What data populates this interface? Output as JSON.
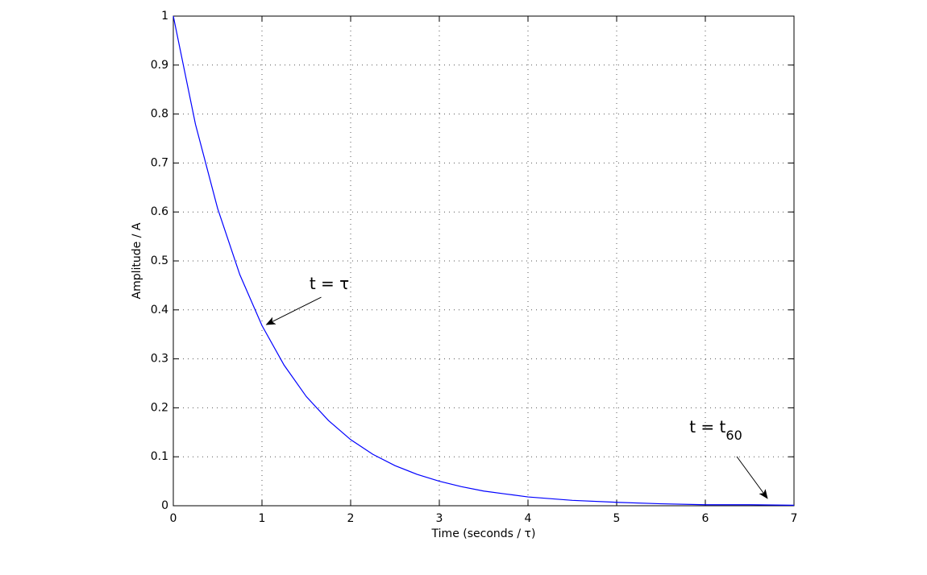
{
  "chart_data": {
    "type": "line",
    "xlabel": "Time (seconds / τ)",
    "ylabel": "Amplitude / A",
    "x": [
      0,
      0.25,
      0.5,
      0.75,
      1,
      1.25,
      1.5,
      1.75,
      2,
      2.25,
      2.5,
      2.75,
      3,
      3.25,
      3.5,
      3.75,
      4,
      4.5,
      5,
      5.5,
      6,
      6.5,
      7
    ],
    "values": [
      1,
      0.779,
      0.607,
      0.472,
      0.368,
      0.287,
      0.223,
      0.174,
      0.135,
      0.105,
      0.082,
      0.064,
      0.05,
      0.039,
      0.03,
      0.024,
      0.018,
      0.011,
      0.007,
      0.004,
      0.002,
      0.002,
      0.001
    ],
    "color": "#0000ff",
    "xlim": [
      0,
      7
    ],
    "xticks": [
      0,
      1,
      2,
      3,
      4,
      5,
      6,
      7
    ],
    "ylim": [
      0,
      1
    ],
    "yticks": [
      0,
      0.1,
      0.2,
      0.3,
      0.4,
      0.5,
      0.6,
      0.7,
      0.8,
      0.9,
      1
    ],
    "grid": true,
    "annotations": [
      {
        "text": "t = τ",
        "x": 1.05,
        "y": 0.37
      },
      {
        "text": "t = t",
        "subscript": "60",
        "x": 6.7,
        "y": 0.015
      }
    ]
  }
}
